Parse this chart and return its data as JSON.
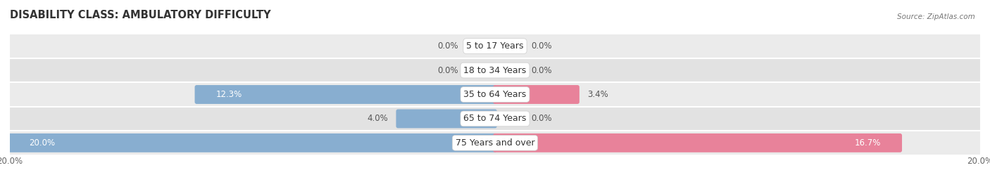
{
  "title": "DISABILITY CLASS: AMBULATORY DIFFICULTY",
  "source": "Source: ZipAtlas.com",
  "categories": [
    "5 to 17 Years",
    "18 to 34 Years",
    "35 to 64 Years",
    "65 to 74 Years",
    "75 Years and over"
  ],
  "male_values": [
    0.0,
    0.0,
    12.3,
    4.0,
    20.0
  ],
  "female_values": [
    0.0,
    0.0,
    3.4,
    0.0,
    16.7
  ],
  "max_val": 20.0,
  "male_color": "#88aed0",
  "female_color": "#e8829a",
  "row_bg_color_odd": "#ebebeb",
  "row_bg_color_even": "#e0e0e0",
  "row_sep_color": "#ffffff",
  "label_color_dark": "#555555",
  "label_color_white": "#ffffff",
  "center_box_color": "#ffffff",
  "title_fontsize": 10.5,
  "label_fontsize": 8.5,
  "cat_fontsize": 9.0,
  "axis_label_fontsize": 8.5,
  "bar_height": 0.62,
  "figsize": [
    14.06,
    2.69
  ],
  "dpi": 100
}
